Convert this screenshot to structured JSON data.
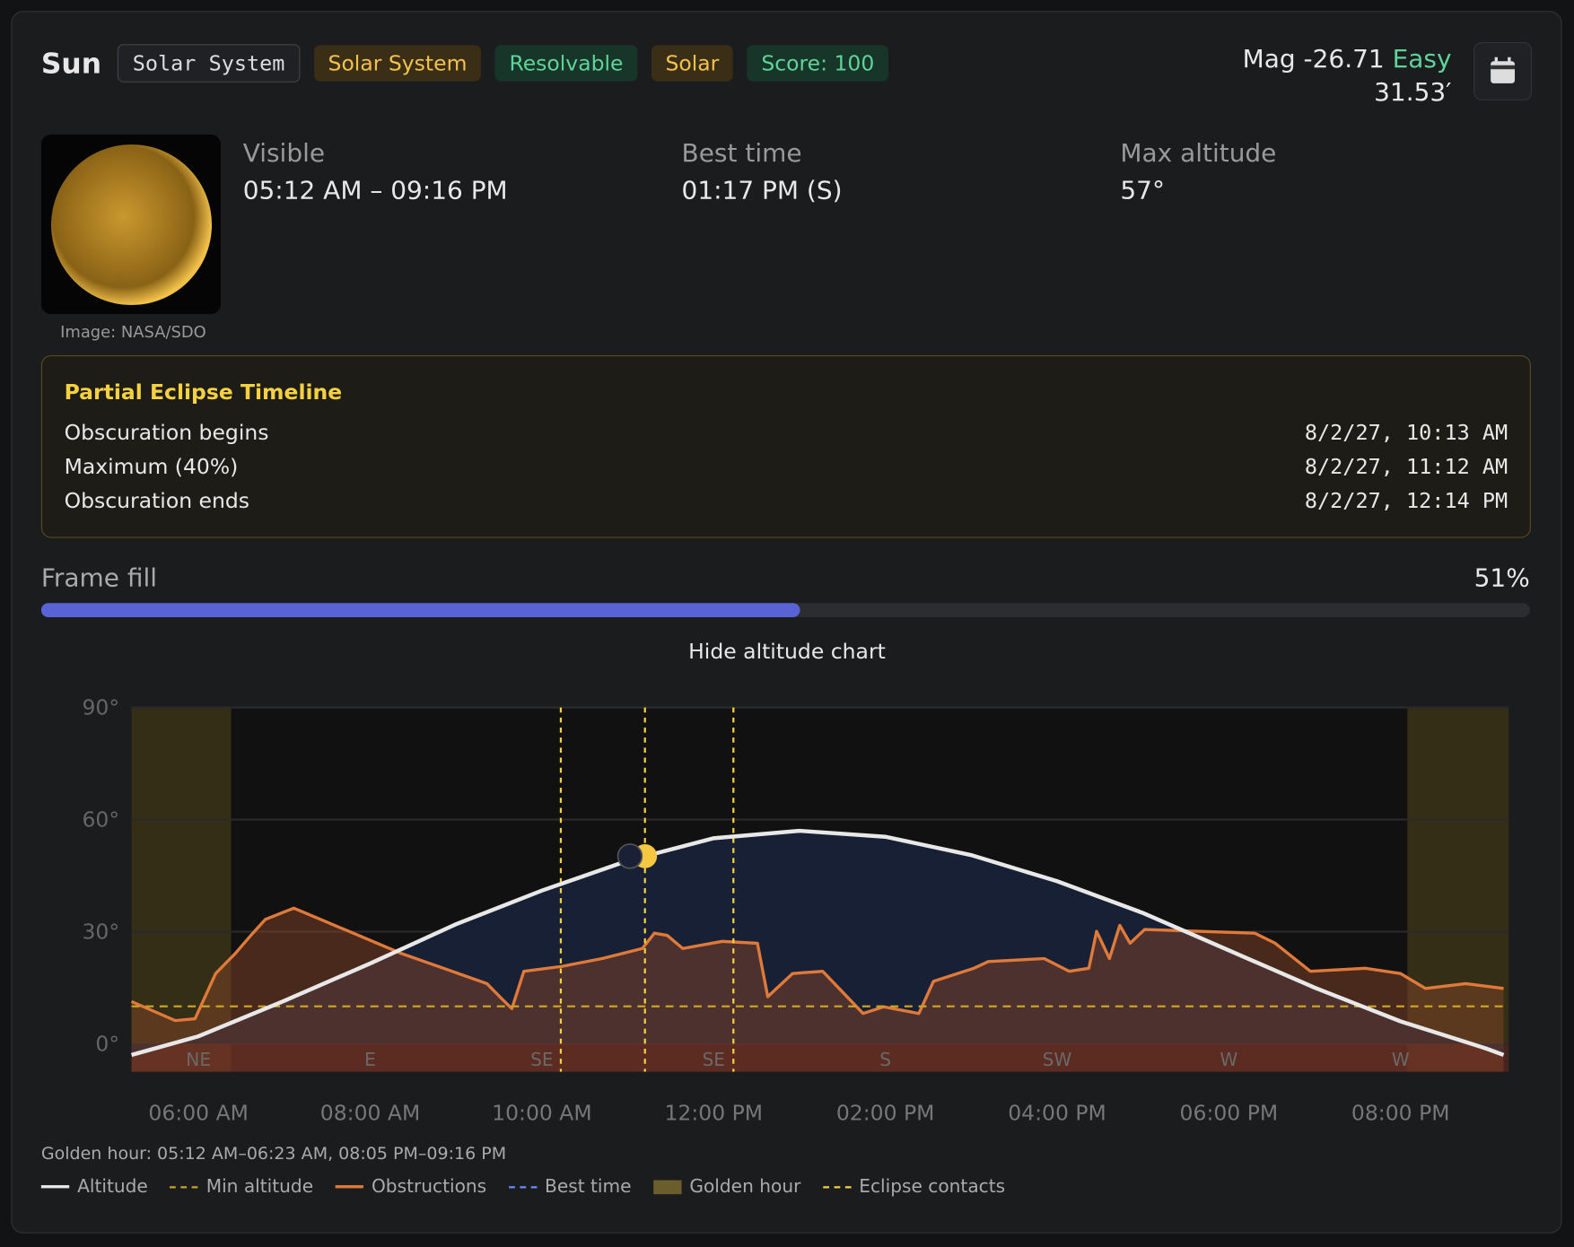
{
  "header": {
    "name": "Sun",
    "catalog": "Solar System",
    "tags": [
      {
        "text": "Solar System",
        "color": "#f2c14e",
        "bg": "#3a2f16"
      },
      {
        "text": "Resolvable",
        "color": "#5fd49a",
        "bg": "#173528"
      },
      {
        "text": "Solar",
        "color": "#f2c14e",
        "bg": "#3a2f16"
      },
      {
        "text": "Score: 100",
        "color": "#5fd49a",
        "bg": "#173528"
      }
    ],
    "magnitude": "Mag -26.71",
    "difficulty": "Easy",
    "size": "31.53′"
  },
  "image_credit": "Image: NASA/SDO",
  "stats": [
    {
      "label": "Visible",
      "value": "05:12 AM – 09:16 PM"
    },
    {
      "label": "Best time",
      "value": "01:17 PM (S)"
    },
    {
      "label": "Max altitude",
      "value": "57°"
    }
  ],
  "eclipse": {
    "title": "Partial Eclipse Timeline",
    "rows": [
      [
        "Obscuration begins",
        "8/2/27, 10:13 AM"
      ],
      [
        "Maximum (40%)",
        "8/2/27, 11:12 AM"
      ],
      [
        "Obscuration ends",
        "8/2/27, 12:14 PM"
      ]
    ]
  },
  "frame_fill": {
    "label": "Frame fill",
    "value": 51,
    "value_label": "51%"
  },
  "toggle": "Hide altitude chart",
  "chart_data": {
    "type": "line",
    "xlim": [
      5.22,
      21.26
    ],
    "ylim": [
      -7.5,
      90
    ],
    "xticks": [
      {
        "value": 6,
        "label": "06:00 AM"
      },
      {
        "value": 8,
        "label": "08:00 AM"
      },
      {
        "value": 10,
        "label": "10:00 AM"
      },
      {
        "value": 12,
        "label": "12:00 PM"
      },
      {
        "value": 14,
        "label": "02:00 PM"
      },
      {
        "value": 16,
        "label": "04:00 PM"
      },
      {
        "value": 18,
        "label": "06:00 PM"
      },
      {
        "value": 20,
        "label": "08:00 PM"
      }
    ],
    "directions": [
      "NE",
      "E",
      "SE",
      "SE",
      "S",
      "SW",
      "W",
      "W"
    ],
    "yticks": [
      {
        "value": 0,
        "label": "0°"
      },
      {
        "value": 30,
        "label": "30°"
      },
      {
        "value": 60,
        "label": "60°"
      },
      {
        "value": 90,
        "label": "90°"
      }
    ],
    "grid": true,
    "series": [
      {
        "color": "#e8e8e8",
        "x": [
          5.22,
          6,
          7,
          8,
          9,
          10,
          11,
          12,
          13,
          14,
          15,
          16,
          17,
          18,
          19,
          20,
          21,
          21.2
        ],
        "values": [
          -3,
          2,
          11.5,
          21.5,
          32,
          41,
          49,
          55,
          57,
          55.4,
          50.5,
          43.5,
          35,
          25,
          15,
          6,
          -1.3,
          -3
        ]
      },
      {
        "color": "#e07a3a",
        "x": [
          5.22,
          5.73,
          5.96,
          6.2,
          6.43,
          6.61,
          6.78,
          7.11,
          8.36,
          9.36,
          9.53,
          9.65,
          9.79,
          10.23,
          10.7,
          11.17,
          11.31,
          11.46,
          11.64,
          12.1,
          12.51,
          12.63,
          12.92,
          13.27,
          13.74,
          13.98,
          14.39,
          14.56,
          15.03,
          15.2,
          15.85,
          16.14,
          16.37,
          16.46,
          16.61,
          16.73,
          16.85,
          17.02,
          18.3,
          18.54,
          18.95,
          19.59,
          20,
          20.29,
          20.76,
          21.2
        ],
        "values": [
          11.3,
          6.2,
          6.7,
          18.8,
          24.2,
          29,
          33.3,
          36.3,
          24.2,
          16.1,
          12.1,
          9.4,
          19.4,
          20.7,
          22.8,
          25.5,
          29.6,
          29,
          25.5,
          27.4,
          26.9,
          12.6,
          18.8,
          19.4,
          8.1,
          9.9,
          8.1,
          16.7,
          20.2,
          22,
          22.8,
          19.4,
          20.2,
          30.1,
          22.8,
          31.7,
          26.9,
          30.6,
          29.6,
          26.9,
          19.4,
          20.2,
          18.8,
          14.8,
          16.1,
          14.8
        ]
      }
    ],
    "min_altitude": 10,
    "golden_hours": [
      [
        5.22,
        6.38
      ],
      [
        20.08,
        21.26
      ]
    ],
    "eclipse_contacts": [
      10.22,
      11.2,
      12.23
    ],
    "golden_hour_note": "Golden hour: 05:12 AM–06:23 AM, 08:05 PM–09:16 PM",
    "legend": [
      {
        "label": "Altitude",
        "color": "#e8e8e8",
        "style": "solid"
      },
      {
        "label": "Min altitude",
        "color": "#c9a227",
        "style": "dashed"
      },
      {
        "label": "Obstructions",
        "color": "#e07a3a",
        "style": "solid"
      },
      {
        "label": "Best time",
        "color": "#6b8cff",
        "style": "dashed"
      },
      {
        "label": "Golden hour",
        "color": "#6a5e2c",
        "style": "box"
      },
      {
        "label": "Eclipse contacts",
        "color": "#f5d142",
        "style": "dashed"
      }
    ]
  }
}
